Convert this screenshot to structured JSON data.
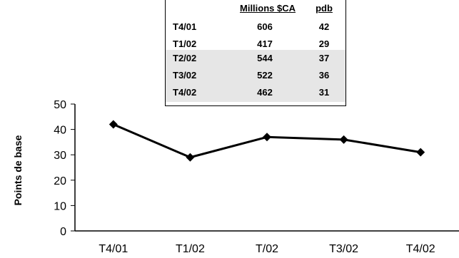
{
  "chart_data": {
    "type": "line",
    "categories": [
      "T4/01",
      "T1/02",
      "T/02",
      "T3/02",
      "T4/02"
    ],
    "series": [
      {
        "values": [
          42,
          29,
          37,
          36,
          31
        ]
      }
    ],
    "xlabel": "",
    "ylabel": "Points de base",
    "ylim": [
      0,
      50
    ],
    "yticks": [
      0,
      10,
      20,
      30,
      40,
      50
    ],
    "grid": false,
    "colors": {
      "line": "#000000",
      "marker": "#000000"
    }
  },
  "table": {
    "headers": [
      "",
      "Millions $CA",
      "pdb"
    ],
    "rows": [
      [
        "T4/01",
        "606",
        "42"
      ],
      [
        "T1/02",
        "417",
        "29"
      ],
      [
        "T2/02",
        "544",
        "37"
      ],
      [
        "T3/02",
        "522",
        "36"
      ],
      [
        "T4/02",
        "462",
        "31"
      ]
    ]
  }
}
